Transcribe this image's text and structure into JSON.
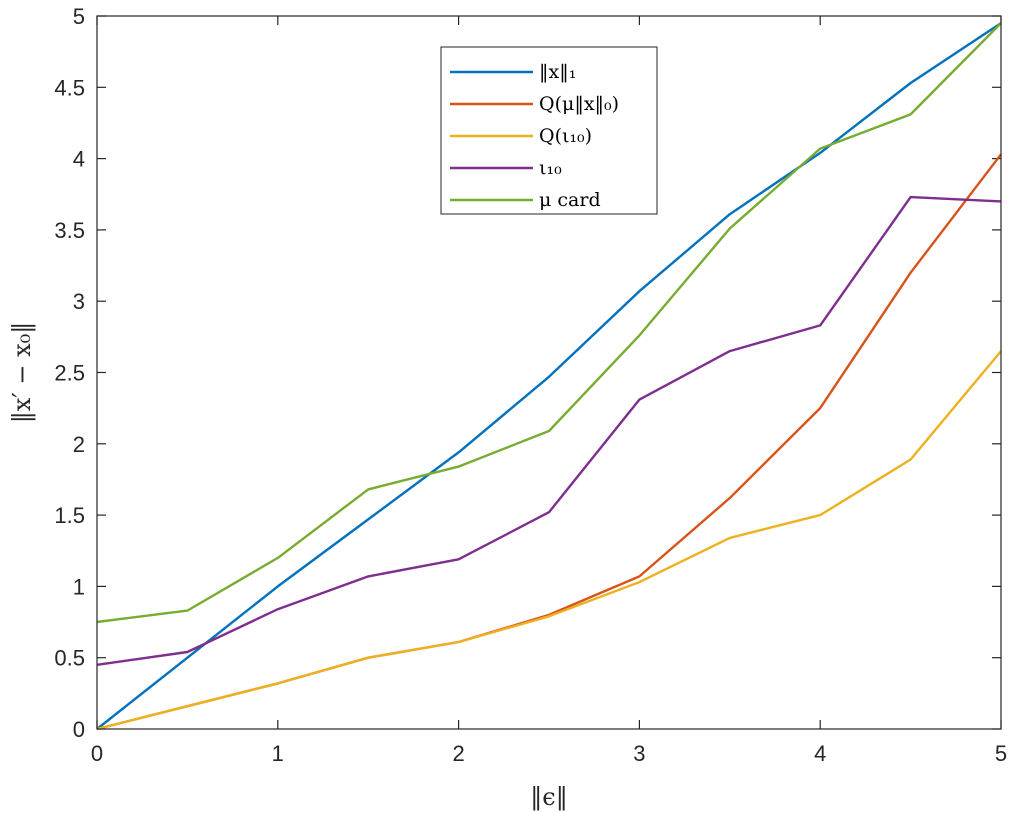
{
  "chart_data": {
    "type": "line",
    "xlabel": "‖ϵ‖",
    "ylabel": "‖x′ − x₀‖",
    "xlim": [
      0,
      5
    ],
    "ylim": [
      0,
      5
    ],
    "xticks": [
      "0",
      "1",
      "2",
      "3",
      "4",
      "5"
    ],
    "yticks": [
      "0",
      "0.5",
      "1",
      "1.5",
      "2",
      "2.5",
      "3",
      "3.5",
      "4",
      "4.5",
      "5"
    ],
    "grid": false,
    "legend_position": "top-center",
    "x": [
      0,
      0.5,
      1,
      1.5,
      2,
      2.5,
      3,
      3.5,
      4,
      4.5,
      5
    ],
    "series": [
      {
        "name": "‖x‖₁",
        "color": "#0072BD",
        "values": [
          0,
          0.5,
          1.0,
          1.47,
          1.94,
          2.47,
          3.07,
          3.61,
          4.04,
          4.53,
          4.95
        ]
      },
      {
        "name": "Q(μ‖x‖₀)",
        "color": "#D95319",
        "values": [
          0,
          0.16,
          0.32,
          0.5,
          0.61,
          0.8,
          1.07,
          1.62,
          2.25,
          3.2,
          4.03
        ]
      },
      {
        "name": "Q(ι₁₀)",
        "color": "#EDB120",
        "values": [
          0,
          0.16,
          0.32,
          0.5,
          0.61,
          0.79,
          1.03,
          1.34,
          1.5,
          1.89,
          2.65
        ]
      },
      {
        "name": "ι₁₀",
        "color": "#7E2F8E",
        "values": [
          0.45,
          0.54,
          0.84,
          1.07,
          1.19,
          1.52,
          2.31,
          2.65,
          2.83,
          3.73,
          3.7
        ]
      },
      {
        "name": "μ card",
        "color": "#77AC30",
        "values": [
          0.75,
          0.83,
          1.2,
          1.68,
          1.84,
          2.09,
          2.76,
          3.51,
          4.07,
          4.31,
          4.95
        ]
      }
    ]
  }
}
